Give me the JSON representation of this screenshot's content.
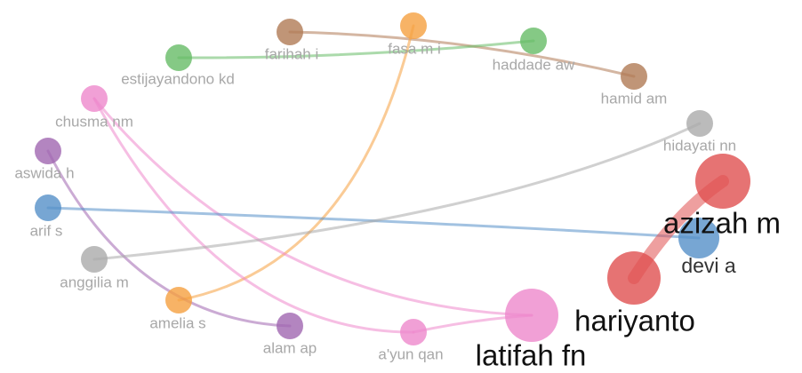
{
  "nodes": [
    {
      "label": "farihah i"
    },
    {
      "label": "fasa m i"
    },
    {
      "label": "haddade aw"
    },
    {
      "label": "estijayandono kd"
    },
    {
      "label": "hamid am"
    },
    {
      "label": "chusma nm"
    },
    {
      "label": "hidayati nn"
    },
    {
      "label": "aswida h"
    },
    {
      "label": "azizah m"
    },
    {
      "label": "arif s"
    },
    {
      "label": "devi a"
    },
    {
      "label": "anggilia m"
    },
    {
      "label": "hariyanto"
    },
    {
      "label": "latifah fn"
    },
    {
      "label": "amelia s"
    },
    {
      "label": "alam ap"
    },
    {
      "label": "a'yun qan"
    }
  ]
}
